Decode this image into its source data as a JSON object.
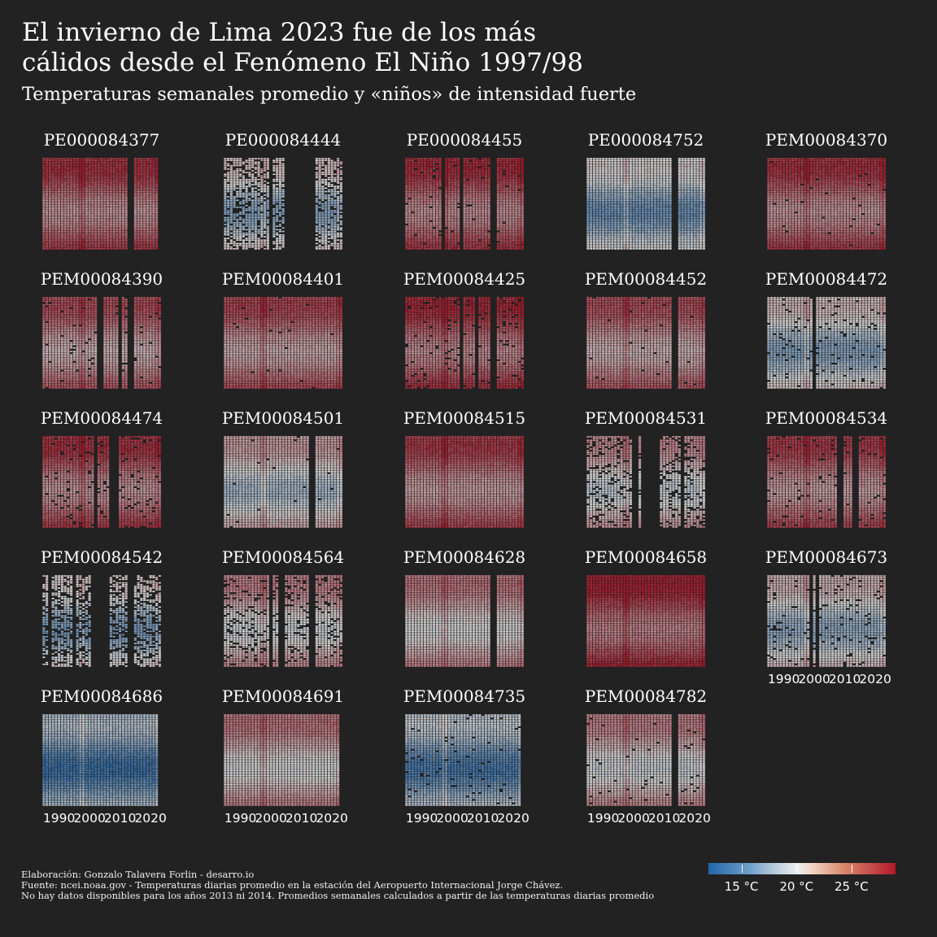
{
  "title_lines": [
    "El invierno de Lima 2023 fue de los más",
    "cálidos desde el Fenómeno El Niño 1997/98"
  ],
  "subtitle": "Temperaturas semanales promedio y «niños» de intensidad fuerte",
  "caption_lines": [
    "Elaboración: Gonzalo Talavera Forlin - desarro.io",
    "Fuente: ncei.noaa.gov - Temperaturas diarias promedio en la estación del Aeropuerto Internacional Jorge Chávez.",
    "No hay datos disponibles para los años 2013 ni 2014. Promedios semanales calculados a partir de las temperaturas diarias promedio"
  ],
  "colors": {
    "background": "#222222",
    "text": "#ffffff",
    "scale_low": "#2166ac",
    "scale_mid": "#eeeeee",
    "scale_high": "#b2182b",
    "missing": "#222222"
  },
  "chart_data": {
    "type": "heatmap",
    "facet_layout": "5 columns x 5 rows",
    "x_axis": {
      "variable": "year",
      "range": [
        1985,
        2023
      ],
      "ticks": [
        "1990",
        "2000",
        "2010",
        "2020"
      ]
    },
    "y_axis": {
      "variable": "week of year",
      "range": [
        1,
        53
      ]
    },
    "color_scale": {
      "unit": "°C",
      "range": [
        12,
        29
      ],
      "ticks": [
        15,
        20,
        25
      ],
      "tick_labels": [
        "15 °C",
        "20 °C",
        "25 °C"
      ],
      "palette": "blue-white-red diverging"
    },
    "panels": [
      {
        "id": "PE000084377",
        "start": 1985,
        "end": 2022,
        "mean_temp": 25.5,
        "gaps": [
          [
            2013,
            2014
          ]
        ],
        "missing_density": 0.0,
        "show_xaxis": false
      },
      {
        "id": "PE000084444",
        "start": 1985,
        "end": 2023,
        "mean_temp": 18.5,
        "gaps": [
          [
            2000,
            2000
          ],
          [
            2005,
            2014
          ]
        ],
        "missing_density": 0.2,
        "show_xaxis": false
      },
      {
        "id": "PE000084455",
        "start": 1985,
        "end": 2023,
        "mean_temp": 25.8,
        "gaps": [
          [
            1997,
            1997
          ],
          [
            2003,
            2003
          ],
          [
            2013,
            2014
          ]
        ],
        "missing_density": 0.02,
        "show_xaxis": false
      },
      {
        "id": "PE000084752",
        "start": 1985,
        "end": 2023,
        "mean_temp": 17.5,
        "gaps": [
          [
            2013,
            2014
          ]
        ],
        "missing_density": 0.0,
        "show_xaxis": false
      },
      {
        "id": "PEM00084370",
        "start": 1985,
        "end": 2023,
        "mean_temp": 25.5,
        "gaps": [],
        "missing_density": 0.01,
        "show_xaxis": false
      },
      {
        "id": "PEM00084390",
        "start": 1985,
        "end": 2023,
        "mean_temp": 24.0,
        "gaps": [
          [
            2003,
            2004
          ],
          [
            2010,
            2010
          ],
          [
            2013,
            2014
          ]
        ],
        "missing_density": 0.03,
        "show_xaxis": false
      },
      {
        "id": "PEM00084401",
        "start": 1985,
        "end": 2023,
        "mean_temp": 24.5,
        "gaps": [],
        "missing_density": 0.01,
        "show_xaxis": false
      },
      {
        "id": "PEM00084425",
        "start": 1985,
        "end": 2023,
        "mean_temp": 26.0,
        "gaps": [
          [
            2003,
            2003
          ],
          [
            2008,
            2008
          ],
          [
            2013,
            2014
          ]
        ],
        "missing_density": 0.06,
        "show_xaxis": false
      },
      {
        "id": "PEM00084452",
        "start": 1985,
        "end": 2023,
        "mean_temp": 24.0,
        "gaps": [
          [
            2013,
            2014
          ]
        ],
        "missing_density": 0.01,
        "show_xaxis": false
      },
      {
        "id": "PEM00084472",
        "start": 1985,
        "end": 2023,
        "mean_temp": 18.5,
        "gaps": [
          [
            2000,
            2000
          ]
        ],
        "missing_density": 0.05,
        "show_xaxis": false
      },
      {
        "id": "PEM00084474",
        "start": 1985,
        "end": 2023,
        "mean_temp": 25.5,
        "gaps": [
          [
            2002,
            2002
          ],
          [
            2007,
            2009
          ]
        ],
        "missing_density": 0.07,
        "show_xaxis": false
      },
      {
        "id": "PEM00084501",
        "start": 1985,
        "end": 2023,
        "mean_temp": 20.0,
        "gaps": [
          [
            2013,
            2014
          ]
        ],
        "missing_density": 0.01,
        "show_xaxis": false
      },
      {
        "id": "PEM00084515",
        "start": 1985,
        "end": 2023,
        "mean_temp": 25.0,
        "gaps": [],
        "missing_density": 0.0,
        "show_xaxis": false
      },
      {
        "id": "PEM00084531",
        "start": 1985,
        "end": 2023,
        "mean_temp": 21.0,
        "gaps": [
          [
            2000,
            2001
          ],
          [
            2003,
            2008
          ],
          [
            2016,
            2016
          ]
        ],
        "missing_density": 0.15,
        "show_xaxis": false
      },
      {
        "id": "PEM00084534",
        "start": 1985,
        "end": 2023,
        "mean_temp": 25.0,
        "gaps": [
          [
            2008,
            2009
          ],
          [
            2013,
            2014
          ]
        ],
        "missing_density": 0.04,
        "show_xaxis": false
      },
      {
        "id": "PEM00084542",
        "start": 1985,
        "end": 2023,
        "mean_temp": 18.0,
        "gaps": [
          [
            1987,
            1987
          ],
          [
            1995,
            1995
          ],
          [
            2001,
            2006
          ],
          [
            2013,
            2014
          ]
        ],
        "missing_density": 0.3,
        "show_xaxis": false
      },
      {
        "id": "PEM00084564",
        "start": 1985,
        "end": 2023,
        "mean_temp": 21.5,
        "gaps": [
          [
            2000,
            2000
          ],
          [
            2003,
            2004
          ],
          [
            2013,
            2014
          ]
        ],
        "missing_density": 0.12,
        "show_xaxis": false
      },
      {
        "id": "PEM00084628",
        "start": 1985,
        "end": 2023,
        "mean_temp": 22.0,
        "gaps": [
          [
            2013,
            2014
          ]
        ],
        "missing_density": 0.0,
        "show_xaxis": false
      },
      {
        "id": "PEM00084658",
        "start": 1985,
        "end": 2023,
        "mean_temp": 26.5,
        "gaps": [],
        "missing_density": 0.0,
        "show_xaxis": false
      },
      {
        "id": "PEM00084673",
        "start": 1985,
        "end": 2023,
        "mean_temp": 19.0,
        "gaps": [
          [
            1999,
            1999
          ],
          [
            2001,
            2001
          ]
        ],
        "missing_density": 0.06,
        "show_xaxis": true
      },
      {
        "id": "PEM00084686",
        "start": 1985,
        "end": 2022,
        "mean_temp": 15.5,
        "gaps": [],
        "missing_density": 0.0,
        "show_xaxis": true
      },
      {
        "id": "PEM00084691",
        "start": 1985,
        "end": 2022,
        "mean_temp": 22.0,
        "gaps": [],
        "missing_density": 0.0,
        "show_xaxis": true
      },
      {
        "id": "PEM00084735",
        "start": 1985,
        "end": 2022,
        "mean_temp": 16.0,
        "gaps": [],
        "missing_density": 0.03,
        "show_xaxis": true
      },
      {
        "id": "PEM00084782",
        "start": 1985,
        "end": 2023,
        "mean_temp": 21.5,
        "gaps": [
          [
            2013,
            2014
          ]
        ],
        "missing_density": 0.02,
        "show_xaxis": true
      }
    ]
  }
}
